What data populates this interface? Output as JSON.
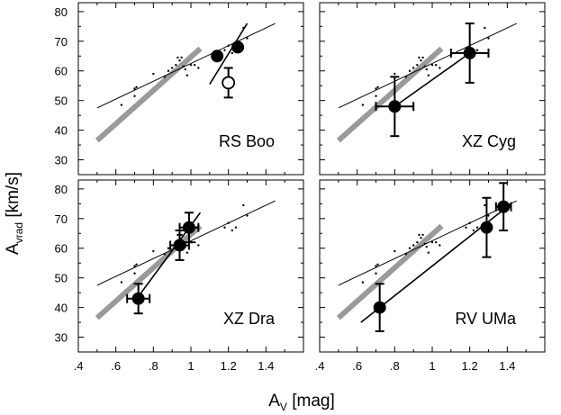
{
  "xlabel": {
    "main": "A",
    "sub": "V",
    "rest": " [mag]"
  },
  "ylabel": {
    "main": "A",
    "sub": "vrad",
    "rest": " [km/s]"
  },
  "chart_data": [
    {
      "type": "scatter",
      "star": "RS Boo",
      "xlim": [
        0.4,
        1.6
      ],
      "ylim": [
        25,
        83
      ],
      "xticks": [
        ".4",
        ".6",
        ".8",
        "1",
        "1.2",
        "1.4"
      ],
      "yticks": [
        "30",
        "40",
        "50",
        "60",
        "70",
        "80"
      ],
      "reference_fit": [
        [
          0.5,
          47.5
        ],
        [
          1.45,
          76
        ]
      ],
      "reference_band": [
        [
          0.5,
          36.5
        ],
        [
          1.05,
          67.5
        ]
      ],
      "star_fit": [
        [
          1.1,
          55.5
        ],
        [
          1.3,
          76
        ]
      ],
      "points": [
        {
          "x": 1.14,
          "y": 65
        },
        {
          "x": 1.25,
          "y": 68
        }
      ],
      "open_point": {
        "x": 1.2,
        "y": 56,
        "yerr": [
          51,
          61
        ]
      }
    },
    {
      "type": "scatter",
      "star": "XZ Cyg",
      "xlim": [
        0.4,
        1.6
      ],
      "ylim": [
        25,
        83
      ],
      "xticks": [
        ".4",
        ".6",
        ".8",
        "1",
        "1.2",
        "1.4"
      ],
      "yticks": [
        "30",
        "40",
        "50",
        "60",
        "70",
        "80"
      ],
      "reference_fit": [
        [
          0.5,
          47.5
        ],
        [
          1.45,
          76
        ]
      ],
      "reference_band": [
        [
          0.5,
          36.5
        ],
        [
          1.05,
          67.5
        ]
      ],
      "star_fit": [
        [
          0.8,
          48
        ],
        [
          1.2,
          66
        ]
      ],
      "points": [
        {
          "x": 0.8,
          "y": 48,
          "xerr": [
            0.7,
            0.9
          ],
          "yerr": [
            38,
            58
          ]
        },
        {
          "x": 1.2,
          "y": 66,
          "xerr": [
            1.1,
            1.3
          ],
          "yerr": [
            56,
            76
          ]
        }
      ]
    },
    {
      "type": "scatter",
      "star": "XZ Dra",
      "xlim": [
        0.4,
        1.6
      ],
      "ylim": [
        25,
        83
      ],
      "xticks": [
        ".4",
        ".6",
        ".8",
        "1",
        "1.2",
        "1.4"
      ],
      "yticks": [
        "30",
        "40",
        "50",
        "60",
        "70",
        "80"
      ],
      "reference_fit": [
        [
          0.5,
          47.5
        ],
        [
          1.45,
          76
        ]
      ],
      "reference_band": [
        [
          0.5,
          36.5
        ],
        [
          1.05,
          67.5
        ]
      ],
      "star_fit": [
        [
          0.7,
          42
        ],
        [
          1.05,
          72
        ]
      ],
      "points": [
        {
          "x": 0.72,
          "y": 43,
          "xerr": [
            0.66,
            0.78
          ],
          "yerr": [
            38,
            48
          ]
        },
        {
          "x": 0.94,
          "y": 61,
          "xerr": [
            0.89,
            0.99
          ],
          "yerr": [
            56,
            66
          ]
        },
        {
          "x": 0.99,
          "y": 67,
          "xerr": [
            0.94,
            1.04
          ],
          "yerr": [
            62,
            72
          ]
        }
      ]
    },
    {
      "type": "scatter",
      "star": "RV UMa",
      "xlim": [
        0.4,
        1.6
      ],
      "ylim": [
        25,
        83
      ],
      "xticks": [
        ".4",
        ".6",
        ".8",
        "1",
        "1.2",
        "1.4"
      ],
      "yticks": [
        "30",
        "40",
        "50",
        "60",
        "70",
        "80"
      ],
      "reference_fit": [
        [
          0.5,
          47.5
        ],
        [
          1.45,
          76
        ]
      ],
      "reference_band": [
        [
          0.5,
          36.5
        ],
        [
          1.05,
          67.5
        ]
      ],
      "star_fit": [
        [
          0.62,
          35
        ],
        [
          1.42,
          75
        ]
      ],
      "points": [
        {
          "x": 0.72,
          "y": 40,
          "yerr": [
            32,
            48
          ]
        },
        {
          "x": 1.29,
          "y": 67,
          "yerr": [
            57,
            77
          ]
        },
        {
          "x": 1.38,
          "y": 74,
          "xerr": [
            1.34,
            1.42
          ],
          "yerr": [
            66,
            82
          ]
        }
      ]
    }
  ],
  "background_points": [
    [
      0.63,
      48.5
    ],
    [
      0.7,
      51.5
    ],
    [
      0.7,
      54
    ],
    [
      0.71,
      54.5
    ],
    [
      0.8,
      59
    ],
    [
      0.86,
      58
    ],
    [
      0.88,
      60
    ],
    [
      0.9,
      61
    ],
    [
      0.92,
      62
    ],
    [
      0.93,
      64.5
    ],
    [
      0.94,
      63.5
    ],
    [
      0.95,
      64.5
    ],
    [
      0.96,
      61.5
    ],
    [
      0.97,
      60.5
    ],
    [
      0.98,
      58.5
    ],
    [
      1.0,
      62
    ],
    [
      1.02,
      62
    ],
    [
      1.04,
      61
    ],
    [
      1.18,
      67
    ],
    [
      1.2,
      68.5
    ],
    [
      1.22,
      66
    ],
    [
      1.24,
      67
    ],
    [
      1.28,
      74.5
    ],
    [
      1.3,
      71
    ]
  ]
}
